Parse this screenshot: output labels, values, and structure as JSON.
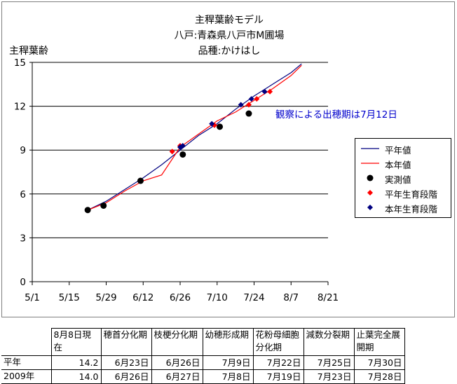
{
  "chart_data": {
    "type": "line",
    "title": [
      "主稈葉齢モデル",
      "八戸:青森県八戸市M圃場",
      "品種:かけはし"
    ],
    "ylabel": "主稈葉齢",
    "xlabel": "",
    "ylim": [
      0,
      15
    ],
    "yticks": [
      "0",
      "3",
      "6",
      "9",
      "12",
      "15"
    ],
    "xticks": [
      "5/1",
      "5/15",
      "5/29",
      "6/12",
      "6/26",
      "7/10",
      "7/24",
      "8/7",
      "8/21"
    ],
    "grid": "horizontal",
    "legend_position": "right",
    "annotation": "観察による出穂期は7月12日",
    "colors": {
      "normal": "#000080",
      "this_year": "#ff0000",
      "observed": "#000000",
      "normal_stage": "#ff0000",
      "this_year_stage": "#000080"
    },
    "series": [
      {
        "name": "平年値",
        "style": "line",
        "color": "#000080",
        "points": [
          [
            "5/22",
            4.9
          ],
          [
            "5/29",
            5.5
          ],
          [
            "6/5",
            6.3
          ],
          [
            "6/12",
            7.1
          ],
          [
            "6/19",
            8.0
          ],
          [
            "6/26",
            9.0
          ],
          [
            "7/3",
            10.0
          ],
          [
            "7/10",
            10.8
          ],
          [
            "7/17",
            11.8
          ],
          [
            "7/24",
            12.7
          ],
          [
            "7/31",
            13.5
          ],
          [
            "8/7",
            14.3
          ],
          [
            "8/11",
            14.9
          ]
        ]
      },
      {
        "name": "本年値",
        "style": "line",
        "color": "#ff0000",
        "points": [
          [
            "5/22",
            4.9
          ],
          [
            "5/29",
            5.4
          ],
          [
            "6/5",
            6.2
          ],
          [
            "6/12",
            6.9
          ],
          [
            "6/19",
            7.3
          ],
          [
            "6/26",
            9.2
          ],
          [
            "7/3",
            10.1
          ],
          [
            "7/10",
            11.0
          ],
          [
            "7/17",
            11.6
          ],
          [
            "7/24",
            12.4
          ],
          [
            "7/31",
            13.2
          ],
          [
            "8/7",
            14.1
          ],
          [
            "8/11",
            14.8
          ]
        ]
      },
      {
        "name": "実測値",
        "style": "marker",
        "shape": "circle",
        "color": "#000000",
        "points": [
          [
            "5/22",
            4.9
          ],
          [
            "5/28",
            5.2
          ],
          [
            "6/11",
            6.9
          ],
          [
            "6/27",
            8.7
          ],
          [
            "7/11",
            10.6
          ],
          [
            "7/22",
            11.5
          ]
        ]
      },
      {
        "name": "平年生育段階",
        "style": "marker",
        "shape": "diamond",
        "color": "#ff0000",
        "points": [
          [
            "6/23",
            8.9
          ],
          [
            "6/26",
            9.3
          ],
          [
            "7/9",
            10.7
          ],
          [
            "7/22",
            12.1
          ],
          [
            "7/25",
            12.5
          ],
          [
            "7/30",
            13.0
          ]
        ]
      },
      {
        "name": "本年生育段階",
        "style": "marker",
        "shape": "diamond",
        "color": "#000080",
        "points": [
          [
            "6/26",
            9.2
          ],
          [
            "6/27",
            9.3
          ],
          [
            "7/8",
            10.8
          ],
          [
            "7/19",
            12.1
          ],
          [
            "7/23",
            12.5
          ],
          [
            "7/28",
            13.0
          ]
        ]
      }
    ]
  },
  "table": {
    "headers": [
      "",
      "8月8日現在",
      "穂首分化期",
      "枝梗分化期",
      "幼穂形成期",
      "花粉母細胞分化期",
      "減数分裂期",
      "止葉完全展開期"
    ],
    "rows": [
      [
        "平年",
        "14.2",
        "6月23日",
        "6月26日",
        "7月9日",
        "7月22日",
        "7月25日",
        "7月30日"
      ],
      [
        "2009年",
        "14.0",
        "6月26日",
        "6月27日",
        "7月8日",
        "7月19日",
        "7月23日",
        "7月28日"
      ]
    ]
  }
}
